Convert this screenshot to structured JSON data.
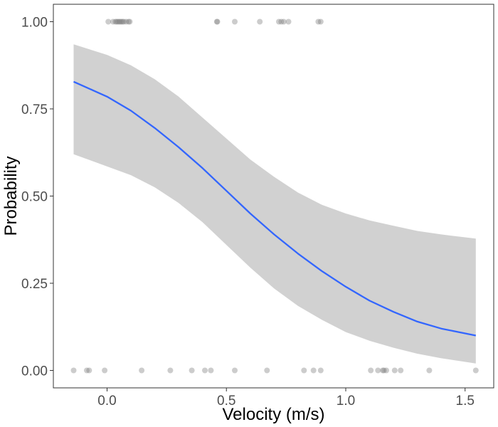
{
  "chart_data": {
    "type": "scatter",
    "xlabel": "Velocity (m/s)",
    "ylabel": "Probability",
    "xlim": [
      -0.225,
      1.62
    ],
    "ylim": [
      -0.05,
      1.05
    ],
    "x_ticks": [
      0.0,
      0.5,
      1.0,
      1.5
    ],
    "x_tick_labels": [
      "0.0",
      "0.5",
      "1.0",
      "1.5"
    ],
    "y_ticks": [
      0.0,
      0.25,
      0.5,
      0.75,
      1.0
    ],
    "y_tick_labels": [
      "0.00",
      "0.25",
      "0.50",
      "0.75",
      "1.00"
    ],
    "grid": false,
    "series": [
      {
        "kind": "points",
        "color": "#808080",
        "points": [
          {
            "x": 0.005,
            "y": 1
          },
          {
            "x": 0.025,
            "y": 1
          },
          {
            "x": 0.035,
            "y": 1
          },
          {
            "x": 0.04,
            "y": 1
          },
          {
            "x": 0.045,
            "y": 1
          },
          {
            "x": 0.05,
            "y": 1
          },
          {
            "x": 0.055,
            "y": 1
          },
          {
            "x": 0.06,
            "y": 1
          },
          {
            "x": 0.065,
            "y": 1
          },
          {
            "x": 0.07,
            "y": 1
          },
          {
            "x": 0.08,
            "y": 1
          },
          {
            "x": 0.09,
            "y": 1
          },
          {
            "x": 0.095,
            "y": 1
          },
          {
            "x": 0.46,
            "y": 1
          },
          {
            "x": 0.462,
            "y": 1
          },
          {
            "x": 0.535,
            "y": 1
          },
          {
            "x": 0.64,
            "y": 1
          },
          {
            "x": 0.72,
            "y": 1
          },
          {
            "x": 0.73,
            "y": 1
          },
          {
            "x": 0.74,
            "y": 1
          },
          {
            "x": 0.76,
            "y": 1
          },
          {
            "x": 0.885,
            "y": 1
          },
          {
            "x": 0.895,
            "y": 1
          },
          {
            "x": -0.14,
            "y": 0
          },
          {
            "x": -0.085,
            "y": 0
          },
          {
            "x": -0.075,
            "y": 0
          },
          {
            "x": -0.01,
            "y": 0
          },
          {
            "x": 0.145,
            "y": 0
          },
          {
            "x": 0.265,
            "y": 0
          },
          {
            "x": 0.355,
            "y": 0
          },
          {
            "x": 0.41,
            "y": 0
          },
          {
            "x": 0.435,
            "y": 0
          },
          {
            "x": 0.535,
            "y": 0
          },
          {
            "x": 0.67,
            "y": 0
          },
          {
            "x": 0.825,
            "y": 0
          },
          {
            "x": 0.865,
            "y": 0
          },
          {
            "x": 0.895,
            "y": 0
          },
          {
            "x": 1.105,
            "y": 0
          },
          {
            "x": 1.135,
            "y": 0
          },
          {
            "x": 1.155,
            "y": 0
          },
          {
            "x": 1.16,
            "y": 0
          },
          {
            "x": 1.17,
            "y": 0
          },
          {
            "x": 1.205,
            "y": 0
          },
          {
            "x": 1.23,
            "y": 0
          },
          {
            "x": 1.35,
            "y": 0
          },
          {
            "x": 1.545,
            "y": 0
          }
        ]
      },
      {
        "kind": "fit-line",
        "color": "#3366ff",
        "x": [
          -0.14,
          0.0,
          0.1,
          0.2,
          0.3,
          0.4,
          0.5,
          0.6,
          0.7,
          0.8,
          0.9,
          1.0,
          1.1,
          1.2,
          1.3,
          1.4,
          1.545
        ],
        "y": [
          0.828,
          0.785,
          0.745,
          0.695,
          0.64,
          0.58,
          0.515,
          0.45,
          0.39,
          0.335,
          0.285,
          0.24,
          0.2,
          0.168,
          0.14,
          0.12,
          0.1
        ]
      },
      {
        "kind": "confidence-band",
        "color": "#bfbfbf",
        "x": [
          -0.14,
          0.0,
          0.1,
          0.2,
          0.3,
          0.4,
          0.5,
          0.6,
          0.7,
          0.8,
          0.9,
          1.0,
          1.1,
          1.2,
          1.3,
          1.4,
          1.545
        ],
        "lower": [
          0.62,
          0.585,
          0.56,
          0.525,
          0.48,
          0.425,
          0.36,
          0.295,
          0.235,
          0.185,
          0.145,
          0.11,
          0.085,
          0.065,
          0.048,
          0.035,
          0.02
        ],
        "upper": [
          0.935,
          0.905,
          0.875,
          0.835,
          0.785,
          0.725,
          0.665,
          0.605,
          0.555,
          0.51,
          0.475,
          0.45,
          0.43,
          0.415,
          0.4,
          0.39,
          0.378
        ]
      }
    ]
  }
}
